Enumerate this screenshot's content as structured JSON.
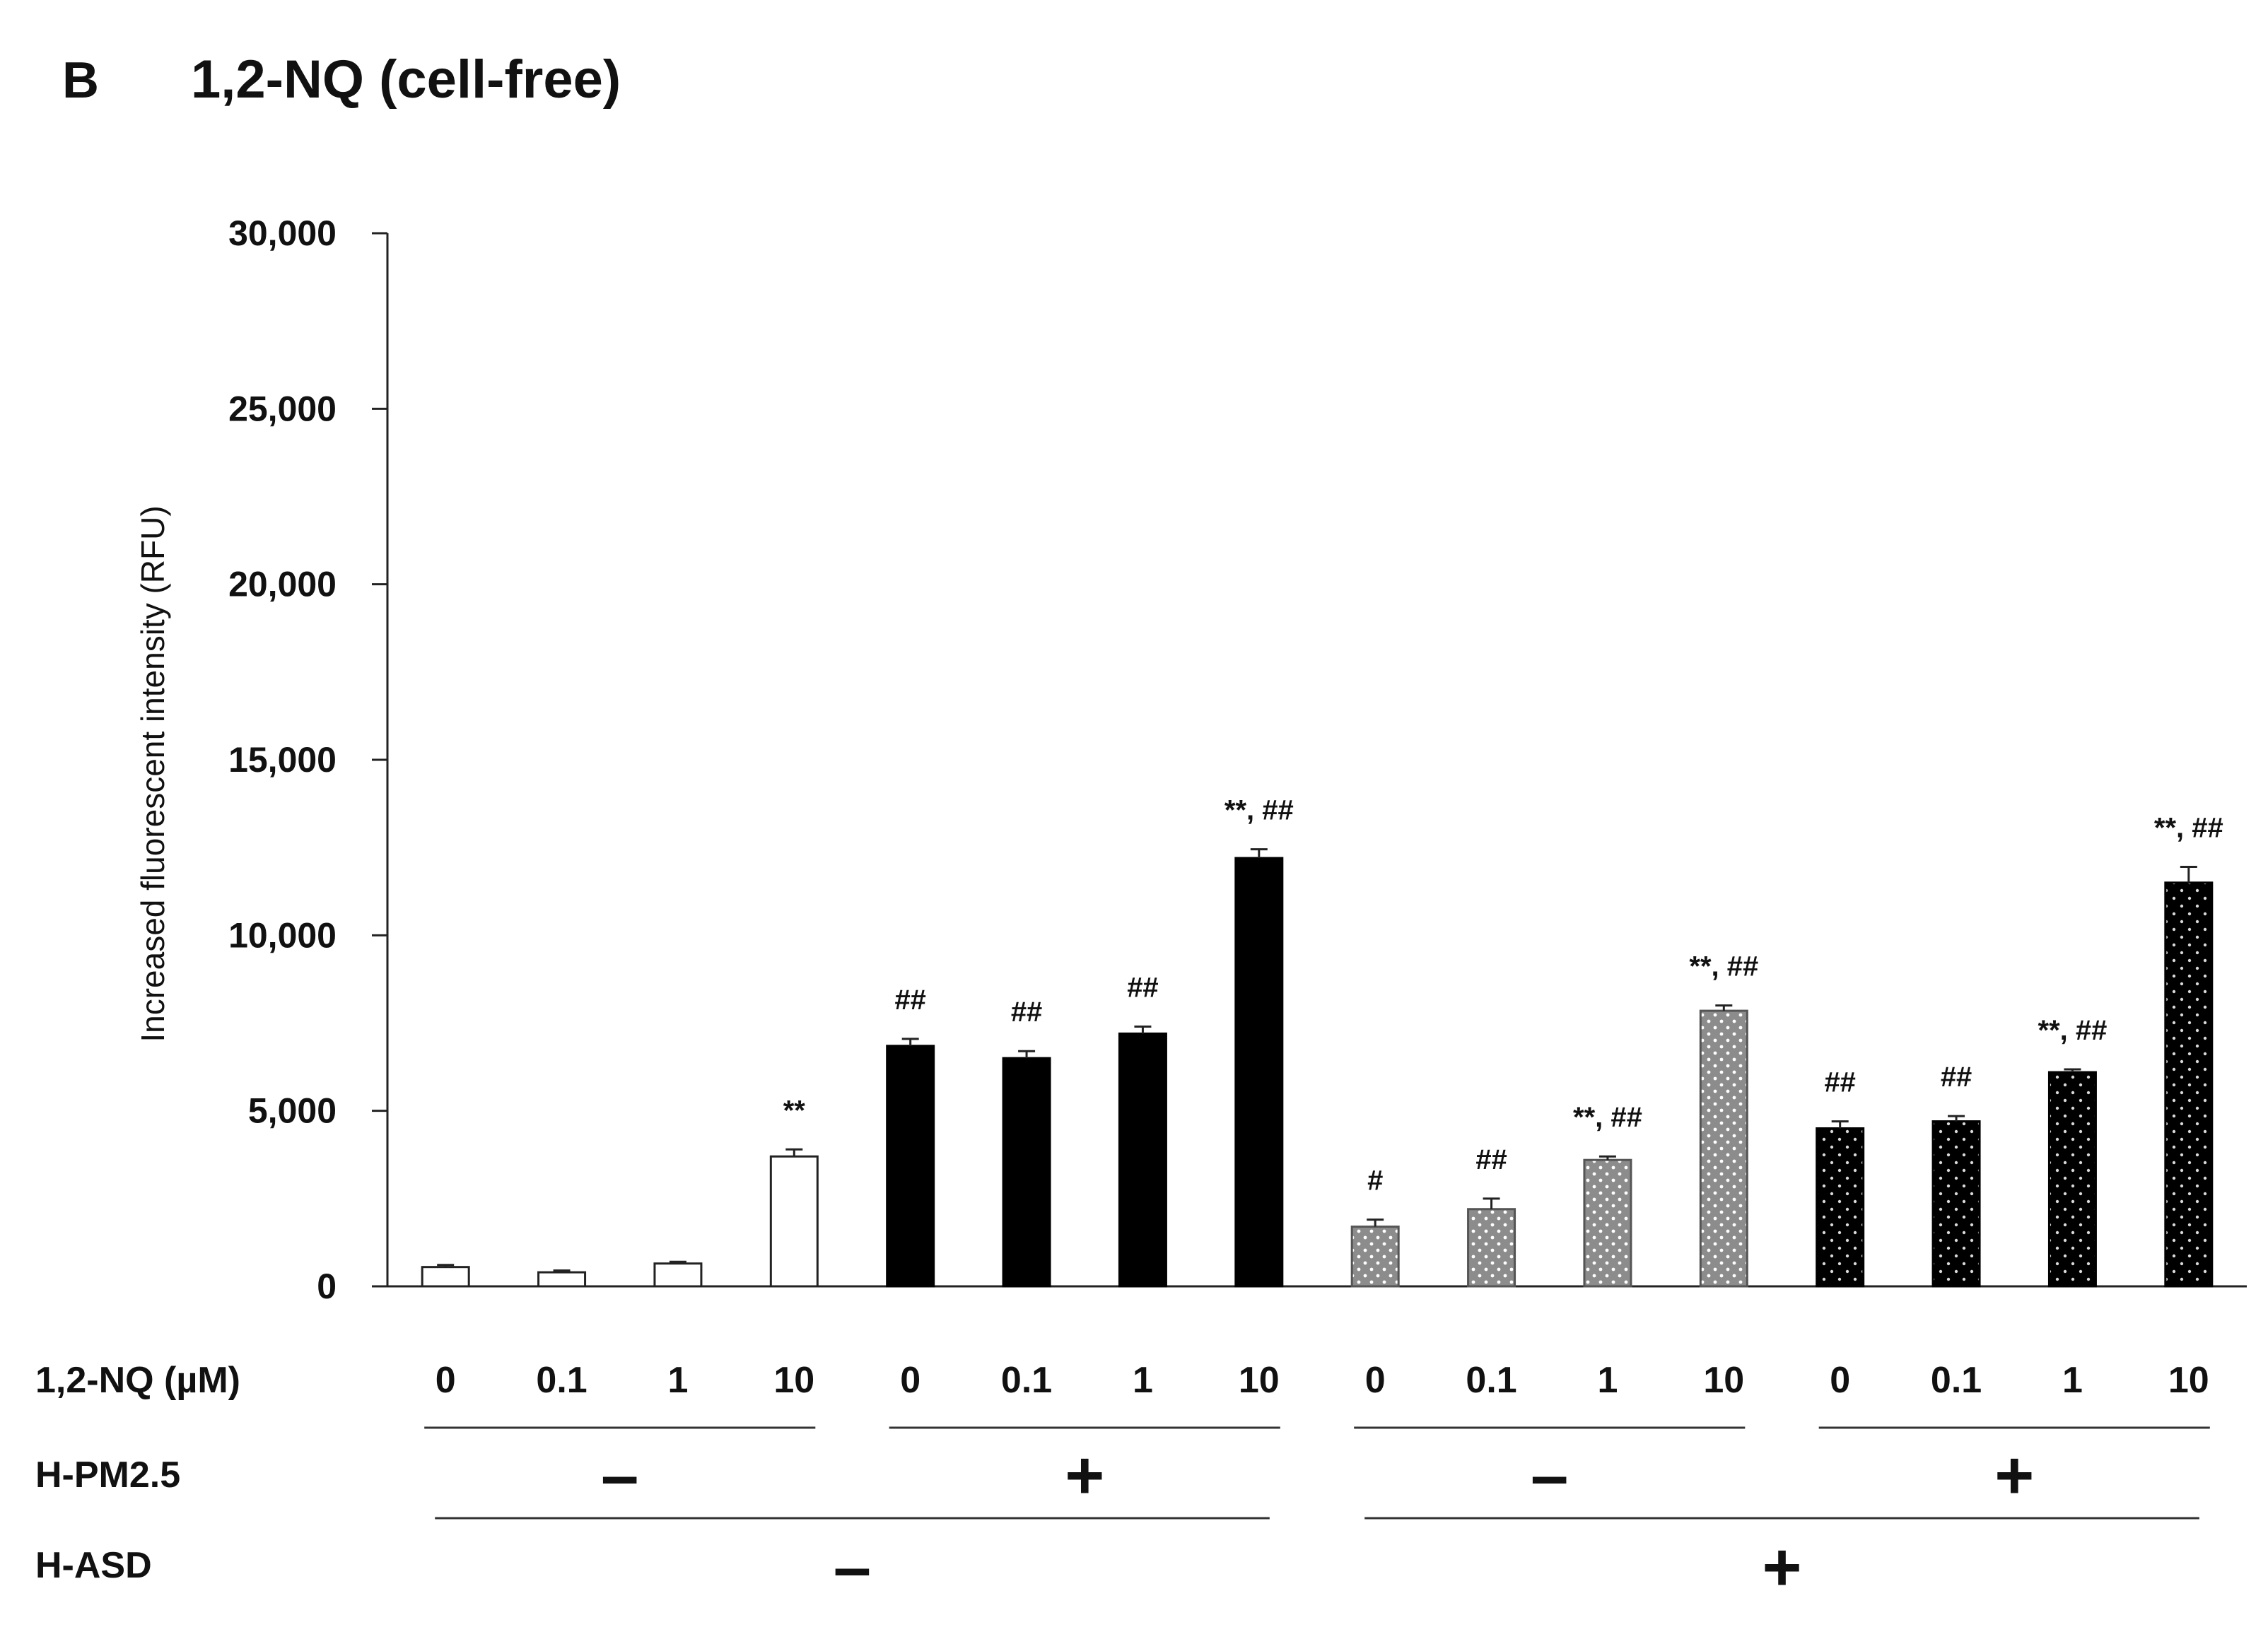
{
  "chart_data": {
    "type": "bar",
    "panel_label": "B",
    "title": "1,2-NQ (cell-free)",
    "ylabel": "Increased fluorescent intensity (RFU)",
    "ylim": [
      0,
      30000
    ],
    "yticks": [
      0,
      5000,
      10000,
      15000,
      20000,
      25000,
      30000
    ],
    "ytick_labels": [
      "0",
      "5,000",
      "10,000",
      "15,000",
      "20,000",
      "25,000",
      "30,000"
    ],
    "row_labels": {
      "nq": "1,2-NQ (µM)",
      "pm": "H-PM2.5",
      "asd": "H-ASD"
    },
    "groups": [
      {
        "pm": "–",
        "asd": "–",
        "fill": "white"
      },
      {
        "pm": "+",
        "asd": "–",
        "fill": "black"
      },
      {
        "pm": "–",
        "asd": "+",
        "fill": "gray-dotted"
      },
      {
        "pm": "+",
        "asd": "+",
        "fill": "black-dotted"
      }
    ],
    "asd_labels": [
      "–",
      "+"
    ],
    "colors": {
      "gray": "#8c8c8c",
      "black": "#000000",
      "white": "#ffffff",
      "dot": "#ffffff",
      "dotDark": "#d9d9d9"
    },
    "bars": [
      {
        "group": 0,
        "nq": "0",
        "value": 550,
        "error": 60,
        "annotation": ""
      },
      {
        "group": 0,
        "nq": "0.1",
        "value": 400,
        "error": 50,
        "annotation": ""
      },
      {
        "group": 0,
        "nq": "1",
        "value": 650,
        "error": 50,
        "annotation": ""
      },
      {
        "group": 0,
        "nq": "10",
        "value": 3700,
        "error": 200,
        "annotation": "**"
      },
      {
        "group": 1,
        "nq": "0",
        "value": 6850,
        "error": 200,
        "annotation": "##"
      },
      {
        "group": 1,
        "nq": "0.1",
        "value": 6500,
        "error": 200,
        "annotation": "##"
      },
      {
        "group": 1,
        "nq": "1",
        "value": 7200,
        "error": 200,
        "annotation": "##"
      },
      {
        "group": 1,
        "nq": "10",
        "value": 12200,
        "error": 250,
        "annotation": "**, ##"
      },
      {
        "group": 2,
        "nq": "0",
        "value": 1700,
        "error": 200,
        "annotation": "#"
      },
      {
        "group": 2,
        "nq": "0.1",
        "value": 2200,
        "error": 300,
        "annotation": "##"
      },
      {
        "group": 2,
        "nq": "1",
        "value": 3600,
        "error": 100,
        "annotation": "**, ##"
      },
      {
        "group": 2,
        "nq": "10",
        "value": 7850,
        "error": 150,
        "annotation": "**, ##"
      },
      {
        "group": 3,
        "nq": "0",
        "value": 4500,
        "error": 200,
        "annotation": "##"
      },
      {
        "group": 3,
        "nq": "0.1",
        "value": 4700,
        "error": 150,
        "annotation": "##"
      },
      {
        "group": 3,
        "nq": "1",
        "value": 6100,
        "error": 80,
        "annotation": "**, ##"
      },
      {
        "group": 3,
        "nq": "10",
        "value": 11500,
        "error": 450,
        "annotation": "**, ##"
      }
    ]
  }
}
